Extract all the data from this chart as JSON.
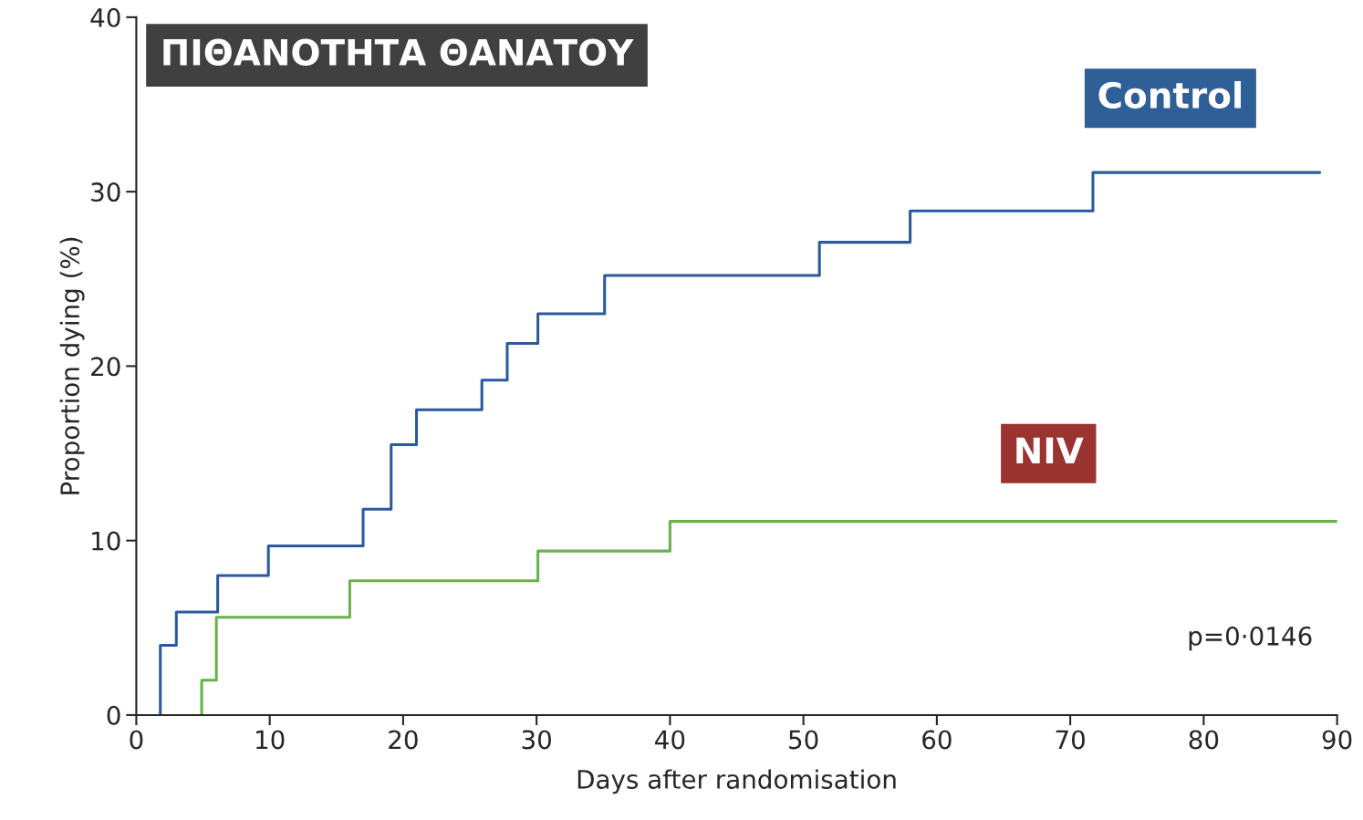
{
  "chart_data": {
    "type": "step",
    "title": "ΠΙΘΑΝΟΤΗΤΑ ΘΑΝΑΤΟΥ",
    "xlabel": "Days after randomisation",
    "ylabel": "Proportion dying (%)",
    "xlim": [
      0,
      90
    ],
    "xticks": [
      0,
      10,
      20,
      30,
      40,
      50,
      60,
      70,
      80,
      90
    ],
    "ylim": [
      0,
      40
    ],
    "yticks": [
      0,
      10,
      20,
      30,
      40
    ],
    "grid": false,
    "legend": false,
    "series": [
      {
        "name": "Control",
        "color": "#2a5a9e",
        "x": [
          1.8,
          1.8,
          3.0,
          6.1,
          9.9,
          17.0,
          19.1,
          21.0,
          25.9,
          27.8,
          30.1,
          35.1,
          51.2,
          58.0,
          71.7,
          88.7
        ],
        "values": [
          0,
          4.0,
          5.9,
          8.0,
          9.7,
          11.8,
          15.5,
          17.5,
          19.2,
          21.3,
          23.0,
          25.2,
          27.1,
          28.9,
          31.1,
          31.1
        ]
      },
      {
        "name": "NIV",
        "color": "#6ab04c",
        "x": [
          4.9,
          4.9,
          6.0,
          16.0,
          30.1,
          40.0,
          90.0
        ],
        "values": [
          0,
          2.0,
          5.6,
          7.7,
          9.4,
          11.1,
          11.1
        ]
      }
    ],
    "annotations": [
      "p=0·0146"
    ]
  }
}
